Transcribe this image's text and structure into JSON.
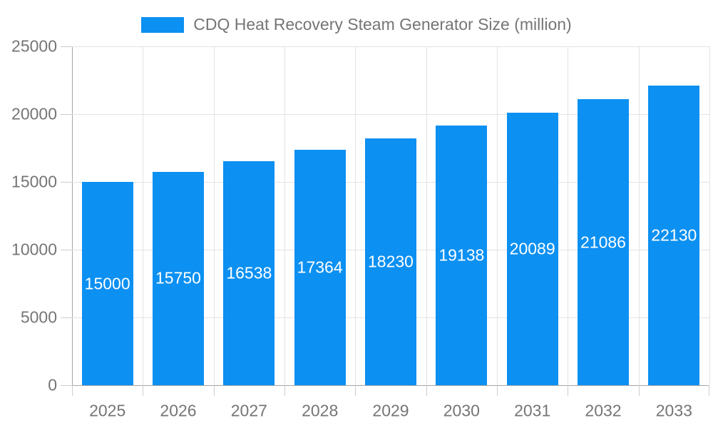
{
  "legend": {
    "label": "CDQ Heat Recovery Steam Generator Size (million)"
  },
  "chart_data": {
    "type": "bar",
    "title": "",
    "series_name": "CDQ Heat Recovery Steam Generator Size (million)",
    "categories": [
      "2025",
      "2026",
      "2027",
      "2028",
      "2029",
      "2030",
      "2031",
      "2032",
      "2033"
    ],
    "values": [
      15000,
      15750,
      16538,
      17364,
      18230,
      19138,
      20089,
      21086,
      22130
    ],
    "xlabel": "",
    "ylabel": "",
    "ylim": [
      0,
      25000
    ],
    "yticks": [
      0,
      5000,
      10000,
      15000,
      20000,
      25000
    ],
    "grid": true,
    "legend_position": "top",
    "bar_labels_visible": true,
    "bar_label_position": "middle"
  },
  "colors": {
    "bar": "#0c90f2",
    "bar_label": "#ffffff",
    "axis": "#a6a6a6",
    "gridline": "#e3e3e3",
    "tick": "#cdcdcd",
    "text": "#757575",
    "background": "#ffffff"
  }
}
